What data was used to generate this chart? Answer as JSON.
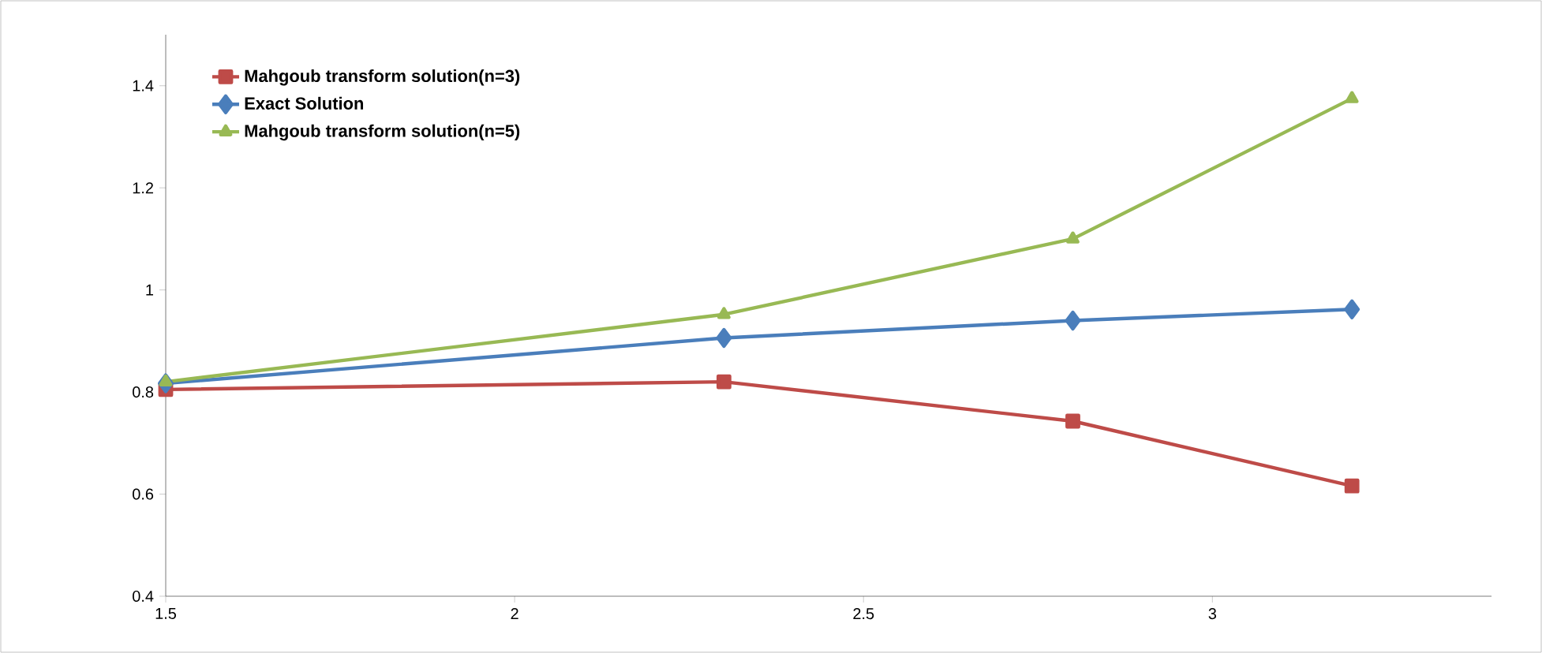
{
  "chart_data": {
    "type": "line",
    "xlim": [
      1.5,
      3.4
    ],
    "ylim": [
      0.4,
      1.5
    ],
    "xticks": [
      1.5,
      2,
      2.5,
      3
    ],
    "yticks": [
      0.4,
      0.6,
      0.8,
      1,
      1.2,
      1.4
    ],
    "grid": false,
    "legend": "top left",
    "line_style": "solid",
    "series": [
      {
        "name": "Mahgoub transform solution(n=3)",
        "color": "#be4b48",
        "marker": "square",
        "x": [
          1.5,
          2.3,
          2.8,
          3.2
        ],
        "values": [
          0.805,
          0.82,
          0.743,
          0.616
        ]
      },
      {
        "name": "Exact Solution",
        "color": "#4a7ebb",
        "marker": "diamond",
        "x": [
          1.5,
          2.3,
          2.8,
          3.2
        ],
        "values": [
          0.817,
          0.906,
          0.94,
          0.962
        ]
      },
      {
        "name": "Mahgoub transform solution(n=5)",
        "color": "#98b954",
        "marker": "triangle",
        "x": [
          1.5,
          2.3,
          2.8,
          3.2
        ],
        "values": [
          0.82,
          0.952,
          1.1,
          1.375
        ]
      }
    ]
  }
}
